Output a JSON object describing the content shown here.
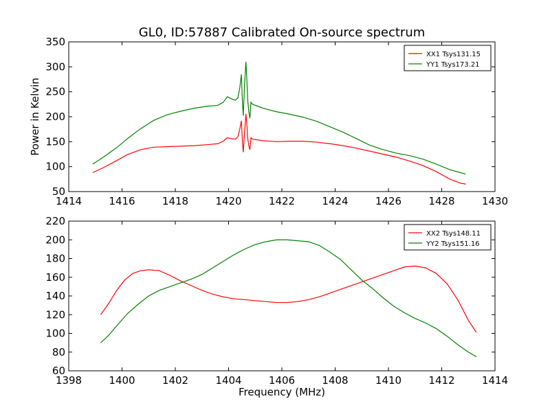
{
  "title": "GL0, ID:57887 Calibrated On-source spectrum",
  "chart_data": [
    {
      "type": "line",
      "ylabel": "Power in Kelvin",
      "xlabel": "",
      "xlim": [
        1414,
        1430
      ],
      "ylim": [
        50,
        350
      ],
      "xticks": [
        1414,
        1416,
        1418,
        1420,
        1422,
        1424,
        1426,
        1428,
        1430
      ],
      "yticks": [
        50,
        100,
        150,
        200,
        250,
        300,
        350
      ],
      "grid": false,
      "legend": "top-right",
      "series": [
        {
          "name": "XX1 Tsys131.15",
          "color": "#ff0000",
          "points": [
            [
              1414.9,
              88
            ],
            [
              1415.3,
              98
            ],
            [
              1415.8,
              112
            ],
            [
              1416.2,
              124
            ],
            [
              1416.7,
              134
            ],
            [
              1417.2,
              139
            ],
            [
              1417.7,
              140
            ],
            [
              1418.2,
              141
            ],
            [
              1418.7,
              142
            ],
            [
              1419.2,
              144
            ],
            [
              1419.6,
              146
            ],
            [
              1419.8,
              151
            ],
            [
              1419.95,
              158
            ],
            [
              1420.1,
              156
            ],
            [
              1420.25,
              155
            ],
            [
              1420.35,
              160
            ],
            [
              1420.42,
              175
            ],
            [
              1420.48,
              192
            ],
            [
              1420.52,
              150
            ],
            [
              1420.55,
              129
            ],
            [
              1420.6,
              168
            ],
            [
              1420.65,
              206
            ],
            [
              1420.68,
              188
            ],
            [
              1420.72,
              156
            ],
            [
              1420.76,
              142
            ],
            [
              1420.8,
              134
            ],
            [
              1420.84,
              158
            ],
            [
              1420.9,
              155
            ],
            [
              1421.3,
              152
            ],
            [
              1421.8,
              150
            ],
            [
              1422.3,
              151
            ],
            [
              1422.8,
              151
            ],
            [
              1423.3,
              149
            ],
            [
              1423.8,
              146
            ],
            [
              1424.3,
              142
            ],
            [
              1424.8,
              137
            ],
            [
              1425.3,
              131
            ],
            [
              1425.8,
              125
            ],
            [
              1426.3,
              119
            ],
            [
              1426.8,
              111
            ],
            [
              1427.3,
              102
            ],
            [
              1427.8,
              90
            ],
            [
              1428.3,
              75
            ],
            [
              1428.7,
              67
            ],
            [
              1428.9,
              65
            ]
          ]
        },
        {
          "name": "YY1 Tsys173.21",
          "color": "#008000",
          "points": [
            [
              1414.9,
              105
            ],
            [
              1415.3,
              119
            ],
            [
              1415.8,
              138
            ],
            [
              1416.2,
              156
            ],
            [
              1416.7,
              176
            ],
            [
              1417.2,
              193
            ],
            [
              1417.7,
              204
            ],
            [
              1418.2,
              211
            ],
            [
              1418.7,
              217
            ],
            [
              1419.2,
              221
            ],
            [
              1419.6,
              223
            ],
            [
              1419.8,
              229
            ],
            [
              1419.95,
              240
            ],
            [
              1420.1,
              236
            ],
            [
              1420.25,
              233
            ],
            [
              1420.35,
              238
            ],
            [
              1420.42,
              258
            ],
            [
              1420.48,
              285
            ],
            [
              1420.52,
              229
            ],
            [
              1420.55,
              202
            ],
            [
              1420.6,
              265
            ],
            [
              1420.65,
              310
            ],
            [
              1420.68,
              281
            ],
            [
              1420.72,
              232
            ],
            [
              1420.76,
              210
            ],
            [
              1420.8,
              197
            ],
            [
              1420.84,
              229
            ],
            [
              1420.9,
              225
            ],
            [
              1421.3,
              217
            ],
            [
              1421.8,
              210
            ],
            [
              1422.3,
              205
            ],
            [
              1422.8,
              199
            ],
            [
              1423.3,
              191
            ],
            [
              1423.8,
              180
            ],
            [
              1424.3,
              169
            ],
            [
              1424.8,
              156
            ],
            [
              1425.3,
              143
            ],
            [
              1425.8,
              134
            ],
            [
              1426.3,
              127
            ],
            [
              1426.8,
              122
            ],
            [
              1427.3,
              115
            ],
            [
              1427.8,
              105
            ],
            [
              1428.3,
              94
            ],
            [
              1428.7,
              88
            ],
            [
              1428.9,
              85
            ]
          ]
        }
      ]
    },
    {
      "type": "line",
      "xlabel": "Frequency (MHz)",
      "ylabel": "",
      "xlim": [
        1398,
        1414
      ],
      "ylim": [
        60,
        220
      ],
      "xticks": [
        1398,
        1400,
        1402,
        1404,
        1406,
        1408,
        1410,
        1412,
        1414
      ],
      "yticks": [
        60,
        80,
        100,
        120,
        140,
        160,
        180,
        200,
        220
      ],
      "grid": false,
      "legend": "top-right",
      "series": [
        {
          "name": "XX2 Tsys148.11",
          "color": "#ff0000",
          "points": [
            [
              1399.2,
              120
            ],
            [
              1399.5,
              132
            ],
            [
              1399.8,
              146
            ],
            [
              1400.1,
              157
            ],
            [
              1400.4,
              164
            ],
            [
              1400.7,
              167
            ],
            [
              1401.0,
              168
            ],
            [
              1401.4,
              167
            ],
            [
              1401.8,
              162
            ],
            [
              1402.2,
              156
            ],
            [
              1402.6,
              151
            ],
            [
              1403.0,
              146
            ],
            [
              1403.4,
              142
            ],
            [
              1403.8,
              139
            ],
            [
              1404.2,
              137
            ],
            [
              1404.6,
              136
            ],
            [
              1405.0,
              135
            ],
            [
              1405.4,
              134
            ],
            [
              1405.8,
              133
            ],
            [
              1406.2,
              133
            ],
            [
              1406.6,
              134
            ],
            [
              1407.0,
              136
            ],
            [
              1407.4,
              139
            ],
            [
              1407.8,
              143
            ],
            [
              1408.2,
              147
            ],
            [
              1408.6,
              151
            ],
            [
              1409.0,
              155
            ],
            [
              1409.4,
              159
            ],
            [
              1409.8,
              163
            ],
            [
              1410.2,
              167
            ],
            [
              1410.6,
              171
            ],
            [
              1411.0,
              172
            ],
            [
              1411.4,
              170
            ],
            [
              1411.8,
              164
            ],
            [
              1412.2,
              153
            ],
            [
              1412.6,
              136
            ],
            [
              1413.0,
              114
            ],
            [
              1413.3,
              101
            ]
          ]
        },
        {
          "name": "YY2 Tsys151.16",
          "color": "#008000",
          "points": [
            [
              1399.2,
              90
            ],
            [
              1399.5,
              98
            ],
            [
              1399.8,
              108
            ],
            [
              1400.2,
              121
            ],
            [
              1400.6,
              131
            ],
            [
              1401.0,
              140
            ],
            [
              1401.4,
              146
            ],
            [
              1401.8,
              150
            ],
            [
              1402.2,
              154
            ],
            [
              1402.6,
              158
            ],
            [
              1403.0,
              163
            ],
            [
              1403.4,
              170
            ],
            [
              1403.8,
              177
            ],
            [
              1404.2,
              184
            ],
            [
              1404.6,
              190
            ],
            [
              1405.0,
              195
            ],
            [
              1405.4,
              198
            ],
            [
              1405.8,
              200
            ],
            [
              1406.2,
              200
            ],
            [
              1406.6,
              199
            ],
            [
              1407.0,
              198
            ],
            [
              1407.4,
              194
            ],
            [
              1407.8,
              187
            ],
            [
              1408.2,
              179
            ],
            [
              1408.6,
              168
            ],
            [
              1409.0,
              157
            ],
            [
              1409.4,
              148
            ],
            [
              1409.8,
              138
            ],
            [
              1410.2,
              129
            ],
            [
              1410.6,
              122
            ],
            [
              1411.0,
              116
            ],
            [
              1411.4,
              111
            ],
            [
              1411.8,
              105
            ],
            [
              1412.2,
              97
            ],
            [
              1412.6,
              88
            ],
            [
              1413.0,
              80
            ],
            [
              1413.3,
              75
            ]
          ]
        }
      ]
    }
  ]
}
